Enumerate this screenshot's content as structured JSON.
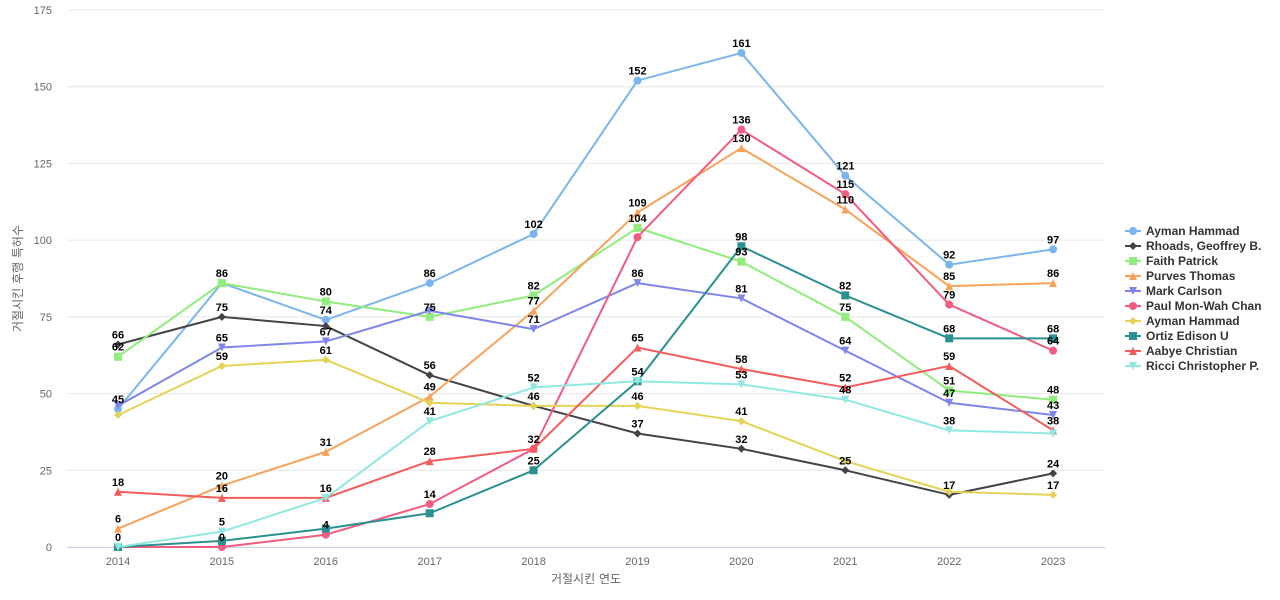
{
  "chart_data": {
    "type": "line",
    "title": "",
    "xlabel": "거절시킨 연도",
    "ylabel": "거절시킨 후행 특허수",
    "x": [
      "2014",
      "2015",
      "2016",
      "2017",
      "2018",
      "2019",
      "2020",
      "2021",
      "2022",
      "2023"
    ],
    "ylim": [
      0,
      175
    ],
    "yticks": [
      0,
      25,
      50,
      75,
      100,
      125,
      150,
      175
    ],
    "grid": true,
    "legend_position": "right",
    "series": [
      {
        "name": "Ayman Hammad",
        "color": "#7cb5ec",
        "marker": "circle",
        "values": [
          45,
          86,
          74,
          86,
          102,
          152,
          161,
          121,
          92,
          97
        ]
      },
      {
        "name": "Rhoads, Geoffrey B.",
        "color": "#434348",
        "marker": "diamond",
        "values": [
          66,
          75,
          72,
          56,
          46,
          37,
          32,
          25,
          17,
          24
        ]
      },
      {
        "name": "Faith Patrick",
        "color": "#90ed7d",
        "marker": "square",
        "values": [
          62,
          86,
          80,
          75,
          82,
          104,
          93,
          75,
          51,
          48
        ]
      },
      {
        "name": "Purves Thomas",
        "color": "#f7a35c",
        "marker": "triangle",
        "values": [
          6,
          20,
          31,
          49,
          77,
          109,
          130,
          110,
          85,
          86
        ]
      },
      {
        "name": "Mark Carlson",
        "color": "#8085e9",
        "marker": "triangle-down",
        "values": [
          46,
          65,
          67,
          77,
          71,
          86,
          81,
          64,
          47,
          43
        ]
      },
      {
        "name": "Paul Mon-Wah Chan",
        "color": "#f15c80",
        "marker": "circle",
        "values": [
          0,
          0,
          4,
          14,
          32,
          101,
          136,
          115,
          79,
          64
        ]
      },
      {
        "name": "Ayman Hammad",
        "color": "#e4d354",
        "marker": "diamond",
        "values": [
          43,
          59,
          61,
          47,
          46,
          46,
          41,
          28,
          18,
          17
        ]
      },
      {
        "name": "Ortiz Edison U",
        "color": "#2b908f",
        "marker": "square",
        "values": [
          0,
          2,
          6,
          11,
          25,
          54,
          98,
          82,
          68,
          68
        ]
      },
      {
        "name": "Aabye Christian",
        "color": "#f45b5b",
        "marker": "triangle",
        "values": [
          18,
          16,
          16,
          28,
          32,
          65,
          58,
          52,
          59,
          38
        ]
      },
      {
        "name": "Ricci Christopher P.",
        "color": "#91e8e1",
        "marker": "triangle-down",
        "values": [
          0,
          5,
          16,
          41,
          52,
          54,
          53,
          48,
          38,
          37
        ]
      }
    ],
    "data_labels": [
      {
        "x": "2014",
        "y": 66,
        "text": "66"
      },
      {
        "x": "2014",
        "y": 62,
        "text": "62"
      },
      {
        "x": "2014",
        "y": 45,
        "text": "45"
      },
      {
        "x": "2014",
        "y": 18,
        "text": "18"
      },
      {
        "x": "2014",
        "y": 6,
        "text": "6"
      },
      {
        "x": "2014",
        "y": 0,
        "text": "0"
      },
      {
        "x": "2015",
        "y": 86,
        "text": "86"
      },
      {
        "x": "2015",
        "y": 75,
        "text": "75"
      },
      {
        "x": "2015",
        "y": 65,
        "text": "65"
      },
      {
        "x": "2015",
        "y": 59,
        "text": "59"
      },
      {
        "x": "2015",
        "y": 20,
        "text": "20"
      },
      {
        "x": "2015",
        "y": 16,
        "text": "16"
      },
      {
        "x": "2015",
        "y": 5,
        "text": "5"
      },
      {
        "x": "2015",
        "y": 0,
        "text": "0"
      },
      {
        "x": "2016",
        "y": 80,
        "text": "80"
      },
      {
        "x": "2016",
        "y": 74,
        "text": "74"
      },
      {
        "x": "2016",
        "y": 67,
        "text": "67"
      },
      {
        "x": "2016",
        "y": 61,
        "text": "61"
      },
      {
        "x": "2016",
        "y": 31,
        "text": "31"
      },
      {
        "x": "2016",
        "y": 16,
        "text": "16"
      },
      {
        "x": "2016",
        "y": 4,
        "text": "4"
      },
      {
        "x": "2017",
        "y": 86,
        "text": "86"
      },
      {
        "x": "2017",
        "y": 75,
        "text": "75"
      },
      {
        "x": "2017",
        "y": 56,
        "text": "56"
      },
      {
        "x": "2017",
        "y": 49,
        "text": "49"
      },
      {
        "x": "2017",
        "y": 41,
        "text": "41"
      },
      {
        "x": "2017",
        "y": 28,
        "text": "28"
      },
      {
        "x": "2017",
        "y": 14,
        "text": "14"
      },
      {
        "x": "2018",
        "y": 102,
        "text": "102"
      },
      {
        "x": "2018",
        "y": 82,
        "text": "82"
      },
      {
        "x": "2018",
        "y": 77,
        "text": "77"
      },
      {
        "x": "2018",
        "y": 71,
        "text": "71"
      },
      {
        "x": "2018",
        "y": 52,
        "text": "52"
      },
      {
        "x": "2018",
        "y": 46,
        "text": "46"
      },
      {
        "x": "2018",
        "y": 32,
        "text": "32"
      },
      {
        "x": "2018",
        "y": 25,
        "text": "25"
      },
      {
        "x": "2019",
        "y": 152,
        "text": "152"
      },
      {
        "x": "2019",
        "y": 109,
        "text": "109"
      },
      {
        "x": "2019",
        "y": 104,
        "text": "104"
      },
      {
        "x": "2019",
        "y": 86,
        "text": "86"
      },
      {
        "x": "2019",
        "y": 65,
        "text": "65"
      },
      {
        "x": "2019",
        "y": 54,
        "text": "54"
      },
      {
        "x": "2019",
        "y": 46,
        "text": "46"
      },
      {
        "x": "2019",
        "y": 37,
        "text": "37"
      },
      {
        "x": "2020",
        "y": 161,
        "text": "161"
      },
      {
        "x": "2020",
        "y": 136,
        "text": "136"
      },
      {
        "x": "2020",
        "y": 130,
        "text": "130"
      },
      {
        "x": "2020",
        "y": 98,
        "text": "98"
      },
      {
        "x": "2020",
        "y": 93,
        "text": "93"
      },
      {
        "x": "2020",
        "y": 81,
        "text": "81"
      },
      {
        "x": "2020",
        "y": 58,
        "text": "58"
      },
      {
        "x": "2020",
        "y": 53,
        "text": "53"
      },
      {
        "x": "2020",
        "y": 41,
        "text": "41"
      },
      {
        "x": "2020",
        "y": 32,
        "text": "32"
      },
      {
        "x": "2021",
        "y": 121,
        "text": "121"
      },
      {
        "x": "2021",
        "y": 115,
        "text": "115"
      },
      {
        "x": "2021",
        "y": 110,
        "text": "110"
      },
      {
        "x": "2021",
        "y": 82,
        "text": "82"
      },
      {
        "x": "2021",
        "y": 75,
        "text": "75"
      },
      {
        "x": "2021",
        "y": 64,
        "text": "64"
      },
      {
        "x": "2021",
        "y": 52,
        "text": "52"
      },
      {
        "x": "2021",
        "y": 48,
        "text": "48"
      },
      {
        "x": "2021",
        "y": 25,
        "text": "25"
      },
      {
        "x": "2022",
        "y": 92,
        "text": "92"
      },
      {
        "x": "2022",
        "y": 85,
        "text": "85"
      },
      {
        "x": "2022",
        "y": 79,
        "text": "79"
      },
      {
        "x": "2022",
        "y": 68,
        "text": "68"
      },
      {
        "x": "2022",
        "y": 59,
        "text": "59"
      },
      {
        "x": "2022",
        "y": 51,
        "text": "51"
      },
      {
        "x": "2022",
        "y": 47,
        "text": "47"
      },
      {
        "x": "2022",
        "y": 38,
        "text": "38"
      },
      {
        "x": "2022",
        "y": 17,
        "text": "17"
      },
      {
        "x": "2023",
        "y": 97,
        "text": "97"
      },
      {
        "x": "2023",
        "y": 86,
        "text": "86"
      },
      {
        "x": "2023",
        "y": 68,
        "text": "68"
      },
      {
        "x": "2023",
        "y": 64,
        "text": "64"
      },
      {
        "x": "2023",
        "y": 48,
        "text": "48"
      },
      {
        "x": "2023",
        "y": 43,
        "text": "43"
      },
      {
        "x": "2023",
        "y": 38,
        "text": "38"
      },
      {
        "x": "2023",
        "y": 24,
        "text": "24"
      },
      {
        "x": "2023",
        "y": 17,
        "text": "17"
      }
    ]
  }
}
